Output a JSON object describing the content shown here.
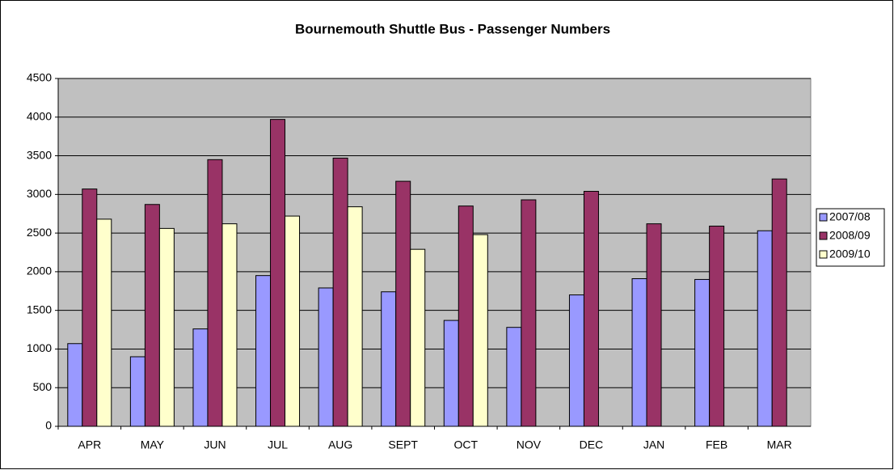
{
  "chart_data": {
    "type": "bar",
    "title": "Bournemouth Shuttle Bus - Passenger Numbers",
    "categories": [
      "APR",
      "MAY",
      "JUN",
      "JUL",
      "AUG",
      "SEPT",
      "OCT",
      "NOV",
      "DEC",
      "JAN",
      "FEB",
      "MAR"
    ],
    "series": [
      {
        "name": "2007/08",
        "color": "#9999ff",
        "values": [
          1070,
          900,
          1260,
          1950,
          1790,
          1740,
          1370,
          1280,
          1700,
          1910,
          1900,
          2530
        ]
      },
      {
        "name": "2008/09",
        "color": "#993366",
        "values": [
          3070,
          2870,
          3450,
          3970,
          3470,
          3170,
          2850,
          2930,
          3040,
          2620,
          2590,
          3200
        ]
      },
      {
        "name": "2009/10",
        "color": "#ffffcc",
        "values": [
          2680,
          2560,
          2620,
          2720,
          2840,
          2290,
          2480,
          null,
          null,
          null,
          null,
          null
        ]
      }
    ],
    "ylim": [
      0,
      4500
    ],
    "yticks": [
      0,
      500,
      1000,
      1500,
      2000,
      2500,
      3000,
      3500,
      4000,
      4500
    ],
    "grid": true,
    "legend": "right"
  }
}
